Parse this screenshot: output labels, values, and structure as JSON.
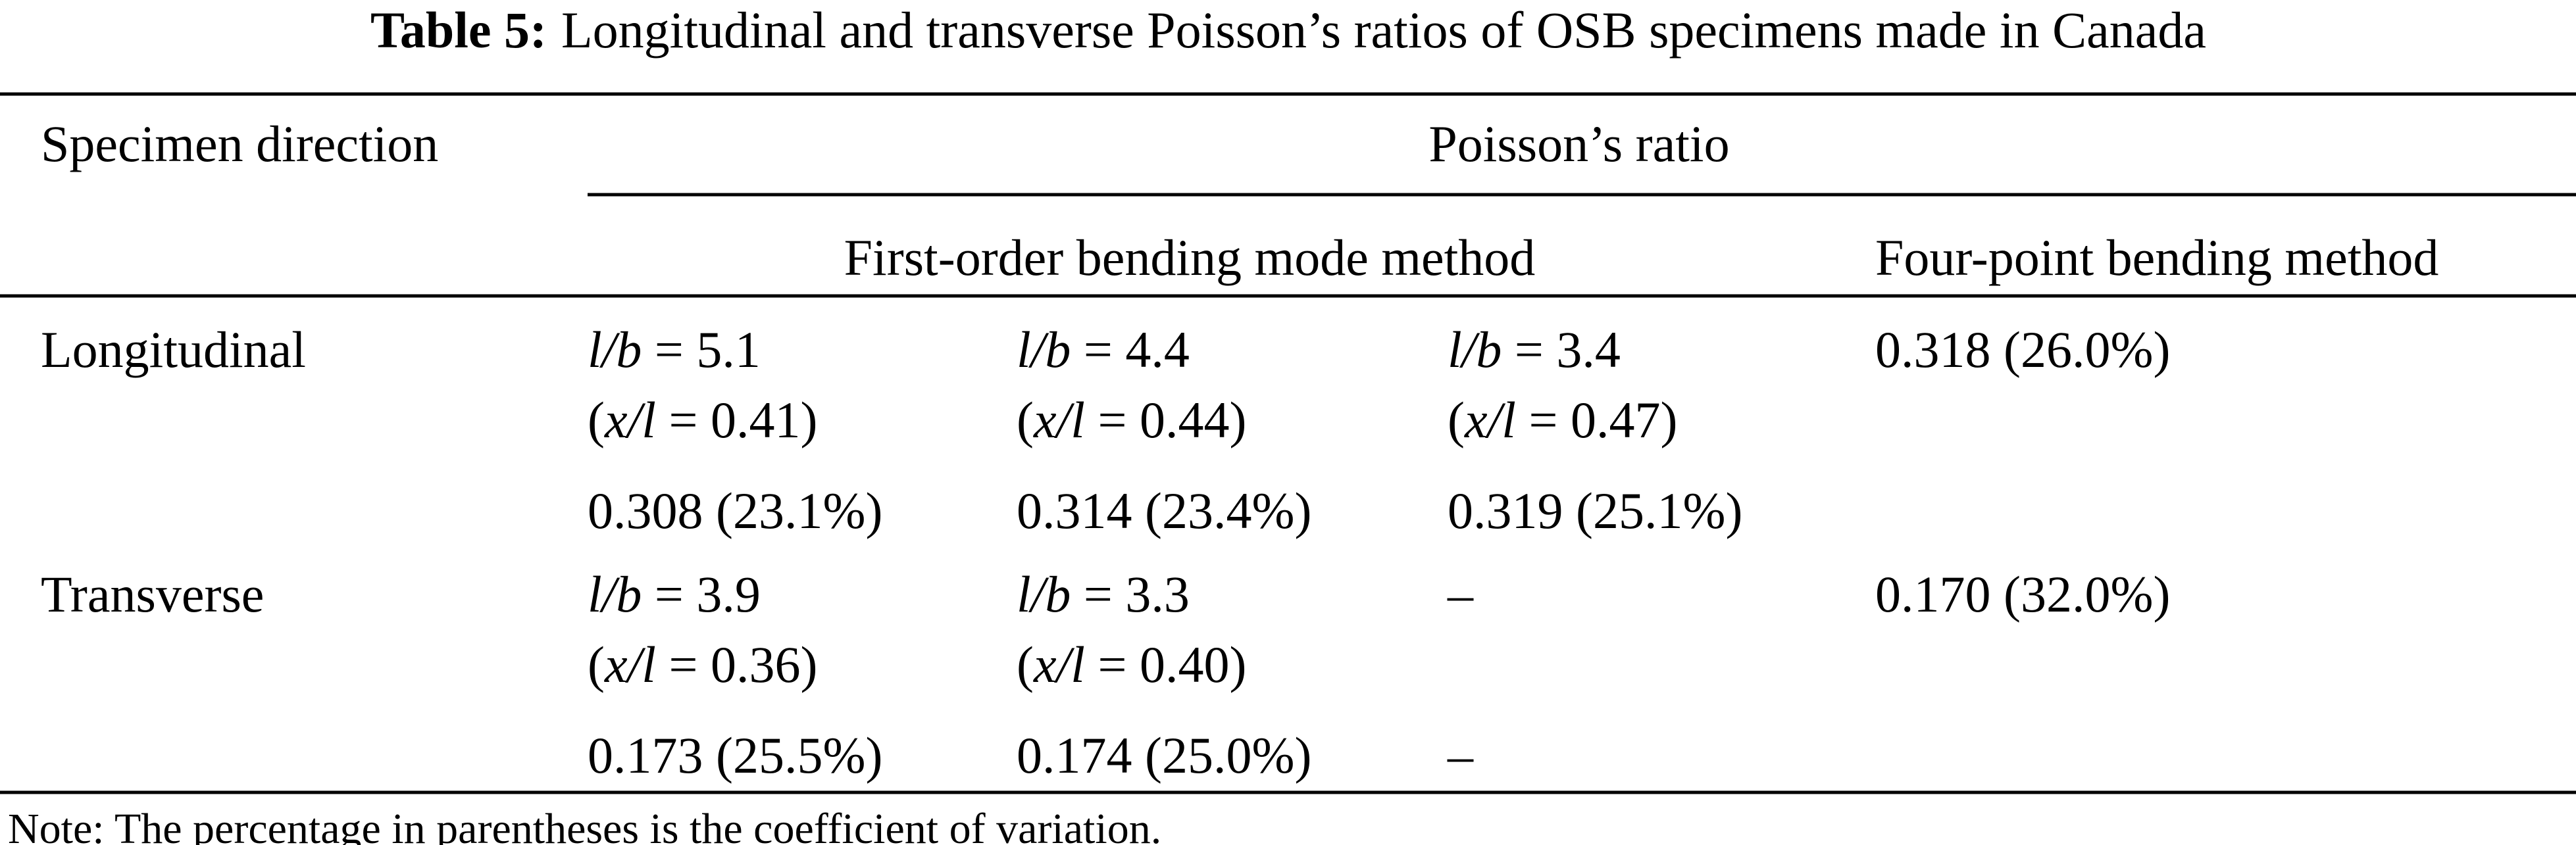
{
  "table": {
    "caption": {
      "label": "Table 5:",
      "text": "Longitudinal and transverse Poisson’s ratios of OSB specimens made in Canada"
    },
    "header": {
      "direction": "Specimen direction",
      "group": "Poisson’s ratio",
      "first_order": "First-order bending mode method",
      "four_point": "Four-point bending method"
    },
    "rows": [
      {
        "direction": "Longitudinal",
        "first_order": [
          {
            "lb": [
              "",
              "l/b",
              " = 5.1"
            ],
            "xl": [
              "(",
              "x/l",
              " = 0.41)"
            ],
            "ratio": "0.308 (23.1%)"
          },
          {
            "lb": [
              "",
              "l/b",
              " = 4.4"
            ],
            "xl": [
              "(",
              "x/l",
              " = 0.44)"
            ],
            "ratio": "0.314 (23.4%)"
          },
          {
            "lb": [
              "",
              "l/b",
              " = 3.4"
            ],
            "xl": [
              "(",
              "x/l",
              " = 0.47)"
            ],
            "ratio": "0.319 (25.1%)"
          }
        ],
        "four_point": "0.318 (26.0%)"
      },
      {
        "direction": "Transverse",
        "first_order": [
          {
            "lb": [
              "",
              "l/b",
              " = 3.9"
            ],
            "xl": [
              "(",
              "x/l",
              " = 0.36)"
            ],
            "ratio": "0.173 (25.5%)"
          },
          {
            "lb": [
              "",
              "l/b",
              " = 3.3"
            ],
            "xl": [
              "(",
              "x/l",
              " = 0.40)"
            ],
            "ratio": "0.174 (25.0%)"
          },
          {
            "lb": [
              "–"
            ],
            "xl": [],
            "ratio": "–"
          }
        ],
        "four_point": "0.170 (32.0%)"
      }
    ]
  },
  "note": "Note: The percentage in parentheses is the coefficient of variation."
}
